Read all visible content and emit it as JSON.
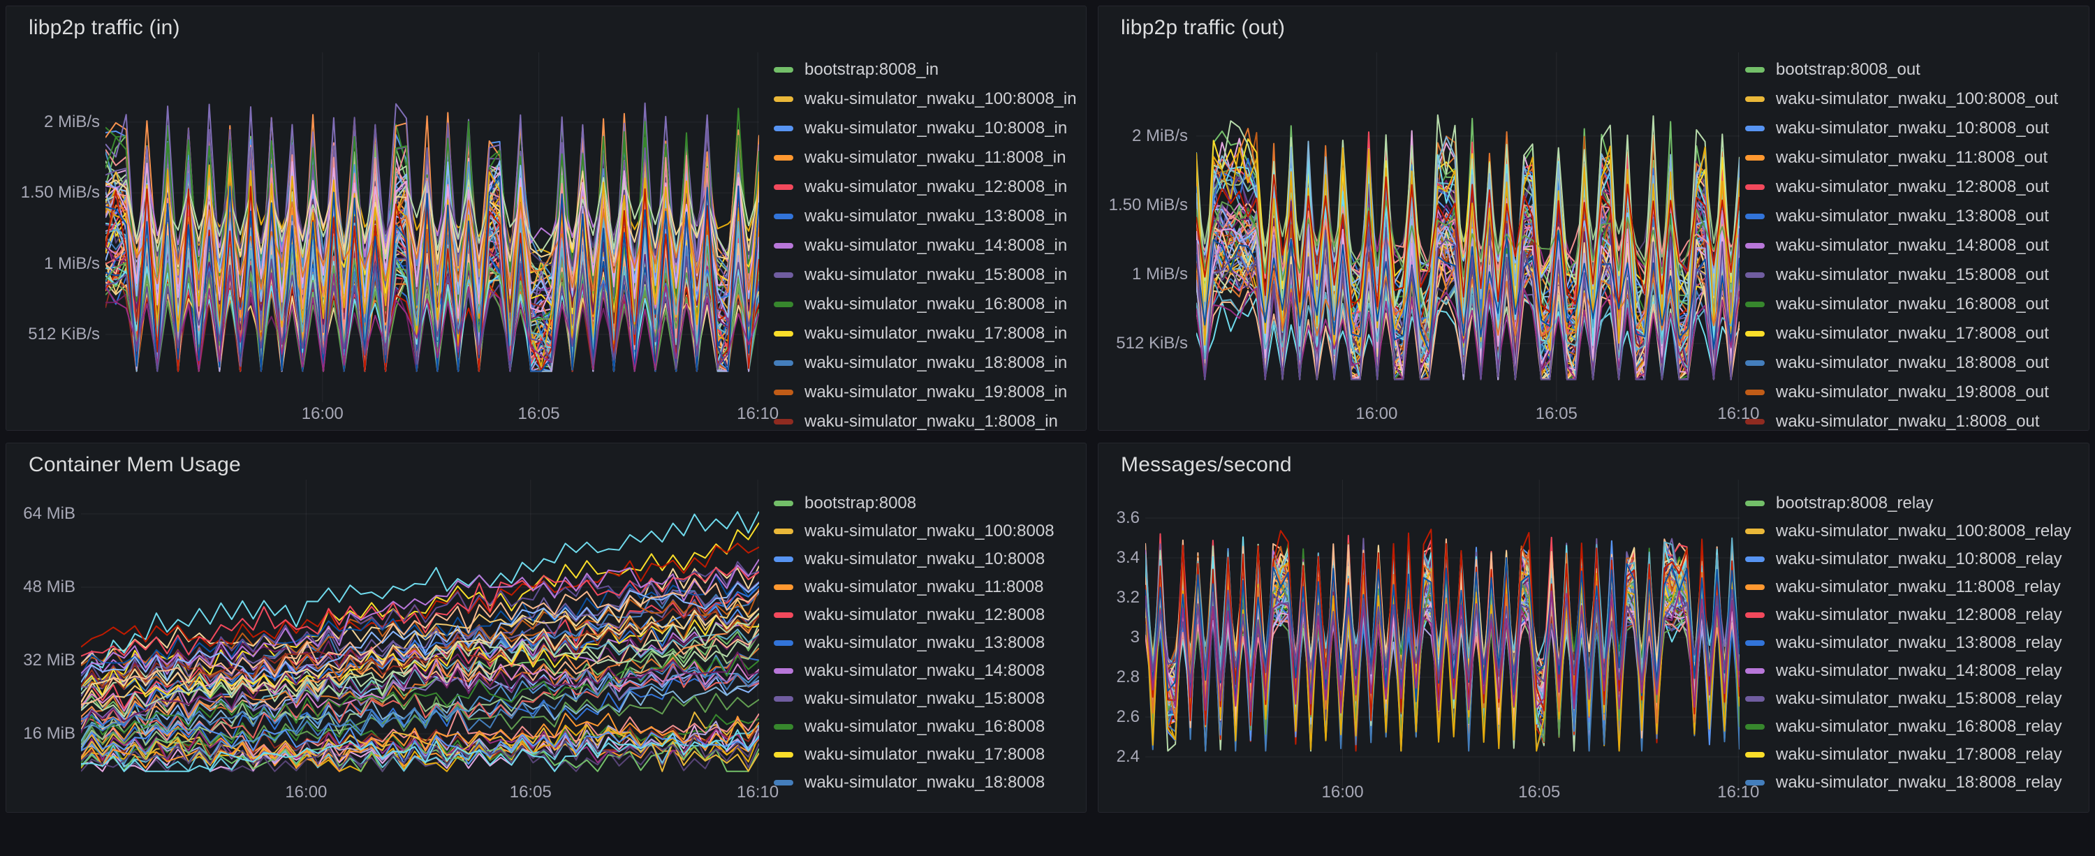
{
  "theme": {
    "page_bg": "#111217",
    "panel_bg": "#181B1F",
    "panel_border": "#25272E",
    "title_color": "#DCDDDE",
    "legend_text_color": "#CFD0D4",
    "axis_text_color": "#CCCCDC",
    "grid_color": "rgba(204,204,220,0.08)",
    "palette": [
      "#73BF69",
      "#EAB839",
      "#5794F2",
      "#FF9830",
      "#F2495C",
      "#3274D9",
      "#B877D9",
      "#705DA0",
      "#37872D",
      "#FADE2A",
      "#447EBC",
      "#C15C17",
      "#8F2B20",
      "#8AB8FF",
      "#6D1F62",
      "#584477",
      "#B7DBAB",
      "#F4D598",
      "#70DBED",
      "#F9BA8F",
      "#F29191",
      "#82B5D8",
      "#E5A8E2",
      "#AEA2E0",
      "#629E51",
      "#E5AC0E",
      "#64B0C8",
      "#E0752D",
      "#BF1B00",
      "#0A50A1",
      "#962D82",
      "#614D93",
      "#9AC48A",
      "#F2C96D",
      "#65C5DB",
      "#F9934E",
      "#EA6460",
      "#5195CE",
      "#D683CE",
      "#806EB7"
    ]
  },
  "chart_data": [
    {
      "type": "line",
      "title": "libp2p traffic (in)",
      "unit": "MiB/s",
      "grid": true,
      "legend_position": "right",
      "x_ticks": [
        "16:00",
        "16:05",
        "16:10"
      ],
      "y_ticks": [
        {
          "value": 2,
          "label": "2 MiB/s"
        },
        {
          "value": 1.5,
          "label": "1.50 MiB/s"
        },
        {
          "value": 1,
          "label": "1 MiB/s"
        },
        {
          "value": 0.5,
          "label": "512 KiB/s"
        }
      ],
      "y_axis_range": {
        "top": 2.424,
        "bottom": 0.169
      },
      "series_legend": [
        "bootstrap:8008_in",
        "waku-simulator_nwaku_100:8008_in",
        "waku-simulator_nwaku_10:8008_in",
        "waku-simulator_nwaku_11:8008_in",
        "waku-simulator_nwaku_12:8008_in",
        "waku-simulator_nwaku_13:8008_in",
        "waku-simulator_nwaku_14:8008_in",
        "waku-simulator_nwaku_15:8008_in",
        "waku-simulator_nwaku_16:8008_in",
        "waku-simulator_nwaku_17:8008_in",
        "waku-simulator_nwaku_18:8008_in",
        "waku-simulator_nwaku_19:8008_in",
        "waku-simulator_nwaku_1:8008_in"
      ],
      "series_rendered": {
        "pattern": "synchronized-zigzag",
        "count": 72,
        "points": 64,
        "seed": 7,
        "base_range": [
          0.5,
          1.4
        ],
        "amp_range": [
          0.18,
          0.8
        ],
        "jitter": 0.13,
        "clamp": [
          0.24,
          2.36
        ],
        "description": "~100 overlapping per-node series oscillating between ~512 KiB/s and ~2.3 MiB/s with aligned peaks"
      }
    },
    {
      "type": "line",
      "title": "libp2p traffic (out)",
      "unit": "MiB/s",
      "grid": true,
      "legend_position": "right",
      "x_ticks": [
        "16:00",
        "16:05",
        "16:10"
      ],
      "y_ticks": [
        {
          "value": 2,
          "label": "2 MiB/s"
        },
        {
          "value": 1.5,
          "label": "1.50 MiB/s"
        },
        {
          "value": 1,
          "label": "1 MiB/s"
        },
        {
          "value": 0.5,
          "label": "512 KiB/s"
        }
      ],
      "y_axis_range": {
        "top": 2.535,
        "bottom": 0.227
      },
      "series_legend": [
        "bootstrap:8008_out",
        "waku-simulator_nwaku_100:8008_out",
        "waku-simulator_nwaku_10:8008_out",
        "waku-simulator_nwaku_11:8008_out",
        "waku-simulator_nwaku_12:8008_out",
        "waku-simulator_nwaku_13:8008_out",
        "waku-simulator_nwaku_14:8008_out",
        "waku-simulator_nwaku_15:8008_out",
        "waku-simulator_nwaku_16:8008_out",
        "waku-simulator_nwaku_17:8008_out",
        "waku-simulator_nwaku_18:8008_out",
        "waku-simulator_nwaku_19:8008_out",
        "waku-simulator_nwaku_1:8008_out"
      ],
      "series_rendered": {
        "pattern": "synchronized-zigzag",
        "count": 72,
        "points": 64,
        "seed": 13,
        "base_range": [
          0.5,
          1.4
        ],
        "amp_range": [
          0.18,
          0.8
        ],
        "jitter": 0.13,
        "clamp": [
          0.24,
          2.36
        ],
        "description": "~100 overlapping per-node series oscillating between ~512 KiB/s and ~2.3 MiB/s with aligned peaks"
      }
    },
    {
      "type": "line",
      "title": "Container Mem Usage",
      "unit": "MiB",
      "grid": true,
      "legend_position": "right",
      "x_ticks": [
        "16:00",
        "16:05",
        "16:10"
      ],
      "y_ticks": [
        {
          "value": 64,
          "label": "64 MiB"
        },
        {
          "value": 48,
          "label": "48 MiB"
        },
        {
          "value": 32,
          "label": "32 MiB"
        },
        {
          "value": 16,
          "label": "16 MiB"
        }
      ],
      "y_axis_range": {
        "top": 69.33,
        "bottom": 7.62
      },
      "series_legend": [
        "bootstrap:8008",
        "waku-simulator_nwaku_100:8008",
        "waku-simulator_nwaku_10:8008",
        "waku-simulator_nwaku_11:8008",
        "waku-simulator_nwaku_12:8008",
        "waku-simulator_nwaku_13:8008",
        "waku-simulator_nwaku_14:8008",
        "waku-simulator_nwaku_15:8008",
        "waku-simulator_nwaku_16:8008",
        "waku-simulator_nwaku_17:8008",
        "waku-simulator_nwaku_18:8008"
      ],
      "series_rendered": {
        "pattern": "rising-noise",
        "count": 60,
        "points": 64,
        "seed": 21,
        "start_range": [
          14,
          34
        ],
        "rise_range": [
          6,
          24
        ],
        "low_fraction": 0.28,
        "noise": 3.2,
        "clamp": [
          7.8,
          64.5
        ],
        "highlight_risers": [
          18,
          9
        ],
        "description": "noisy memory curves rising from ~15-35 MiB toward ~40-60 MiB; a cyan and a yellow series climb to ~60-64 MiB; low band stays ~8-16 MiB"
      }
    },
    {
      "type": "line",
      "title": "Messages/second",
      "unit": "msg/s",
      "grid": true,
      "legend_position": "right",
      "x_ticks": [
        "16:00",
        "16:05",
        "16:10"
      ],
      "y_ticks": [
        {
          "value": 3.6,
          "label": "3.6"
        },
        {
          "value": 3.4,
          "label": "3.4"
        },
        {
          "value": 3.2,
          "label": "3.2"
        },
        {
          "value": 3.0,
          "label": "3"
        },
        {
          "value": 2.8,
          "label": "2.8"
        },
        {
          "value": 2.6,
          "label": "2.6"
        },
        {
          "value": 2.4,
          "label": "2.4"
        }
      ],
      "y_axis_range": {
        "top": 3.744,
        "bottom": 2.323
      },
      "series_legend": [
        "bootstrap:8008_relay",
        "waku-simulator_nwaku_100:8008_relay",
        "waku-simulator_nwaku_10:8008_relay",
        "waku-simulator_nwaku_11:8008_relay",
        "waku-simulator_nwaku_12:8008_relay",
        "waku-simulator_nwaku_13:8008_relay",
        "waku-simulator_nwaku_14:8008_relay",
        "waku-simulator_nwaku_15:8008_relay",
        "waku-simulator_nwaku_16:8008_relay",
        "waku-simulator_nwaku_17:8008_relay",
        "waku-simulator_nwaku_18:8008_relay"
      ],
      "series_rendered": {
        "pattern": "synchronized-zigzag",
        "count": 72,
        "points": 80,
        "seed": 33,
        "base_range": [
          2.88,
          3.08
        ],
        "amp_range": [
          0.2,
          0.5
        ],
        "jitter": 0.06,
        "clamp": [
          2.43,
          3.55
        ],
        "description": "all relay series oscillate in phase between ~2.45 and ~3.55 msg/s around ~3.0"
      }
    }
  ]
}
